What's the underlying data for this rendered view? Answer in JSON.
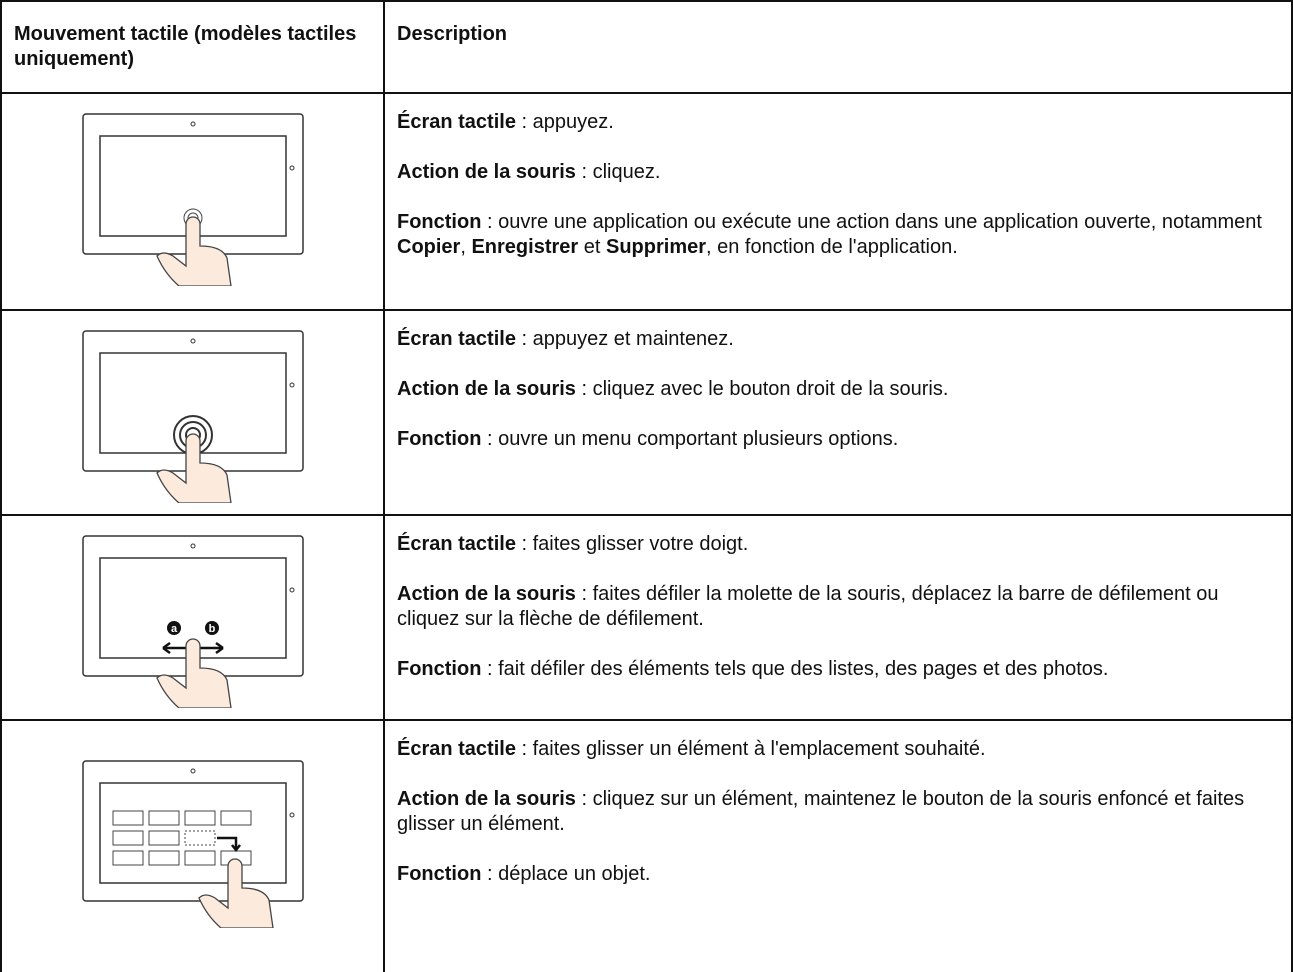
{
  "table": {
    "header": [
      "Mouvement tactile (modèles tactiles uniquement)",
      "Description"
    ],
    "rows": [
      {
        "paragraphs": [
          [
            {
              "b": "Écran tactile"
            },
            {
              "t": " : appuyez."
            }
          ],
          [
            {
              "b": "Action de la souris"
            },
            {
              "t": " : cliquez."
            }
          ],
          [
            {
              "b": "Fonction"
            },
            {
              "t": " : ouvre une application ou exécute une action dans une application ouverte, notamment "
            },
            {
              "b": "Copier"
            },
            {
              "t": ", "
            },
            {
              "b": "Enregistrer"
            },
            {
              "t": " et "
            },
            {
              "b": "Supprimer"
            },
            {
              "t": ", en fonction de l'application."
            }
          ]
        ]
      },
      {
        "paragraphs": [
          [
            {
              "b": "Écran tactile"
            },
            {
              "t": " : appuyez et maintenez."
            }
          ],
          [
            {
              "b": "Action de la souris"
            },
            {
              "t": " : cliquez avec le bouton droit de la souris."
            }
          ],
          [
            {
              "b": "Fonction"
            },
            {
              "t": " : ouvre un menu comportant plusieurs options."
            }
          ]
        ]
      },
      {
        "image_labels": [
          "a",
          "b"
        ],
        "paragraphs": [
          [
            {
              "b": "Écran tactile"
            },
            {
              "t": " : faites glisser votre doigt."
            }
          ],
          [
            {
              "b": "Action de la souris"
            },
            {
              "t": " : faites défiler la molette de la souris, déplacez la barre de défilement ou cliquez sur la flèche de défilement."
            }
          ],
          [
            {
              "b": "Fonction"
            },
            {
              "t": " : fait défiler des éléments tels que des listes, des pages et des photos."
            }
          ]
        ]
      },
      {
        "paragraphs": [
          [
            {
              "b": "Écran tactile"
            },
            {
              "t": " : faites glisser un élément à l'emplacement souhaité."
            }
          ],
          [
            {
              "b": "Action de la souris"
            },
            {
              "t": " : cliquez sur un élément, maintenez le bouton de la souris enfoncé et faites glisser un élément."
            }
          ],
          [
            {
              "b": "Fonction"
            },
            {
              "t": " : déplace un objet."
            }
          ]
        ]
      }
    ]
  }
}
